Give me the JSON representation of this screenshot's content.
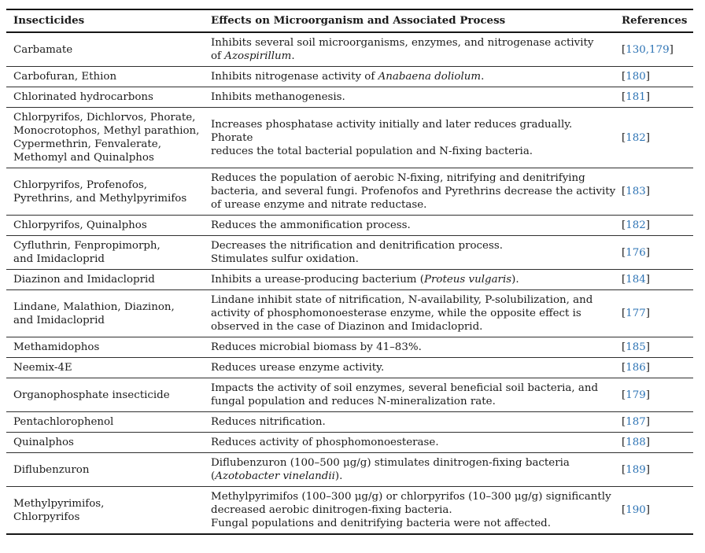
{
  "colors": {
    "reference_link": "#2e74b5",
    "text": "#1b1b1b",
    "border": "#161616"
  },
  "table": {
    "columns": [
      "Insecticides",
      "Effects on Microorganism and Associated Process",
      "References"
    ],
    "rows": [
      {
        "insecticide_lines": [
          "Carbamate"
        ],
        "effect_lines": [
          [
            {
              "t": "Inhibits several soil microorganisms, enzymes, and nitrogenase activity"
            }
          ],
          [
            {
              "t": "of "
            },
            {
              "t": "Azospirillum",
              "i": true
            },
            {
              "t": "."
            }
          ]
        ],
        "ref": "130,179"
      },
      {
        "insecticide_lines": [
          "Carbofuran, Ethion"
        ],
        "effect_lines": [
          [
            {
              "t": "Inhibits nitrogenase activity of "
            },
            {
              "t": "Anabaena doliolum",
              "i": true
            },
            {
              "t": "."
            }
          ]
        ],
        "ref": "180"
      },
      {
        "insecticide_lines": [
          "Chlorinated hydrocarbons"
        ],
        "effect_lines": [
          [
            {
              "t": "Inhibits methanogenesis."
            }
          ]
        ],
        "ref": "181"
      },
      {
        "insecticide_lines": [
          "Chlorpyrifos, Dichlorvos, Phorate,",
          "Monocrotophos, Methyl parathion,",
          "Cypermethrin, Fenvalerate,",
          "Methomyl and Quinalphos"
        ],
        "effect_lines": [
          [
            {
              "t": "Increases phosphatase activity initially and later reduces gradually. Phorate"
            }
          ],
          [
            {
              "t": "reduces the total bacterial population and N-fixing bacteria."
            }
          ]
        ],
        "ref": "182"
      },
      {
        "insecticide_lines": [
          "Chlorpyrifos, Profenofos,",
          "Pyrethrins, and Methylpyrimifos"
        ],
        "effect_lines": [
          [
            {
              "t": "Reduces the population of aerobic N-fixing, nitrifying and denitrifying"
            }
          ],
          [
            {
              "t": "bacteria, and several fungi. Profenofos and Pyrethrins decrease the activity"
            }
          ],
          [
            {
              "t": "of urease enzyme and nitrate reductase."
            }
          ]
        ],
        "ref": "183"
      },
      {
        "insecticide_lines": [
          "Chlorpyrifos, Quinalphos"
        ],
        "effect_lines": [
          [
            {
              "t": "Reduces the ammonification process."
            }
          ]
        ],
        "ref": "182"
      },
      {
        "insecticide_lines": [
          "Cyfluthrin, Fenpropimorph,",
          "and Imidacloprid"
        ],
        "effect_lines": [
          [
            {
              "t": "Decreases the nitrification and denitrification process."
            }
          ],
          [
            {
              "t": "Stimulates sulfur oxidation."
            }
          ]
        ],
        "ref": "176"
      },
      {
        "insecticide_lines": [
          "Diazinon and Imidacloprid"
        ],
        "effect_lines": [
          [
            {
              "t": "Inhibits a urease-producing bacterium ("
            },
            {
              "t": "Proteus vulgaris",
              "i": true
            },
            {
              "t": ")."
            }
          ]
        ],
        "ref": "184"
      },
      {
        "insecticide_lines": [
          "Lindane, Malathion, Diazinon,",
          "and Imidacloprid"
        ],
        "effect_lines": [
          [
            {
              "t": "Lindane inhibit state of nitrification, N-availability, P-solubilization, and"
            }
          ],
          [
            {
              "t": "activity of phosphomonoesterase enzyme, while the opposite effect is"
            }
          ],
          [
            {
              "t": "observed in the case of Diazinon and Imidacloprid."
            }
          ]
        ],
        "ref": "177"
      },
      {
        "insecticide_lines": [
          "Methamidophos"
        ],
        "effect_lines": [
          [
            {
              "t": "Reduces microbial biomass by 41–83%."
            }
          ]
        ],
        "ref": "185"
      },
      {
        "insecticide_lines": [
          "Neemix-4E"
        ],
        "effect_lines": [
          [
            {
              "t": "Reduces urease enzyme activity."
            }
          ]
        ],
        "ref": "186"
      },
      {
        "insecticide_lines": [
          "Organophosphate insecticide"
        ],
        "effect_lines": [
          [
            {
              "t": "Impacts the activity of soil enzymes, several beneficial soil bacteria, and"
            }
          ],
          [
            {
              "t": "fungal population and reduces N-mineralization rate."
            }
          ]
        ],
        "ref": "179"
      },
      {
        "insecticide_lines": [
          "Pentachlorophenol"
        ],
        "effect_lines": [
          [
            {
              "t": "Reduces nitrification."
            }
          ]
        ],
        "ref": "187"
      },
      {
        "insecticide_lines": [
          "Quinalphos"
        ],
        "effect_lines": [
          [
            {
              "t": "Reduces activity of phosphomonoesterase."
            }
          ]
        ],
        "ref": "188"
      },
      {
        "insecticide_lines": [
          "Diflubenzuron"
        ],
        "effect_lines": [
          [
            {
              "t": "Diflubenzuron (100–500 μg/g) stimulates dinitrogen-fixing bacteria"
            }
          ],
          [
            {
              "t": "("
            },
            {
              "t": "Azotobacter vinelandii",
              "i": true
            },
            {
              "t": ")."
            }
          ]
        ],
        "ref": "189"
      },
      {
        "insecticide_lines": [
          "Methylpyrimifos,",
          "Chlorpyrifos"
        ],
        "effect_lines": [
          [
            {
              "t": "Methylpyrimifos (100–300 μg/g) or chlorpyrifos (10–300 μg/g) significantly"
            }
          ],
          [
            {
              "t": "decreased aerobic dinitrogen-fixing bacteria."
            }
          ],
          [
            {
              "t": "Fungal populations and denitrifying bacteria were not affected."
            }
          ]
        ],
        "ref": "190"
      }
    ]
  }
}
